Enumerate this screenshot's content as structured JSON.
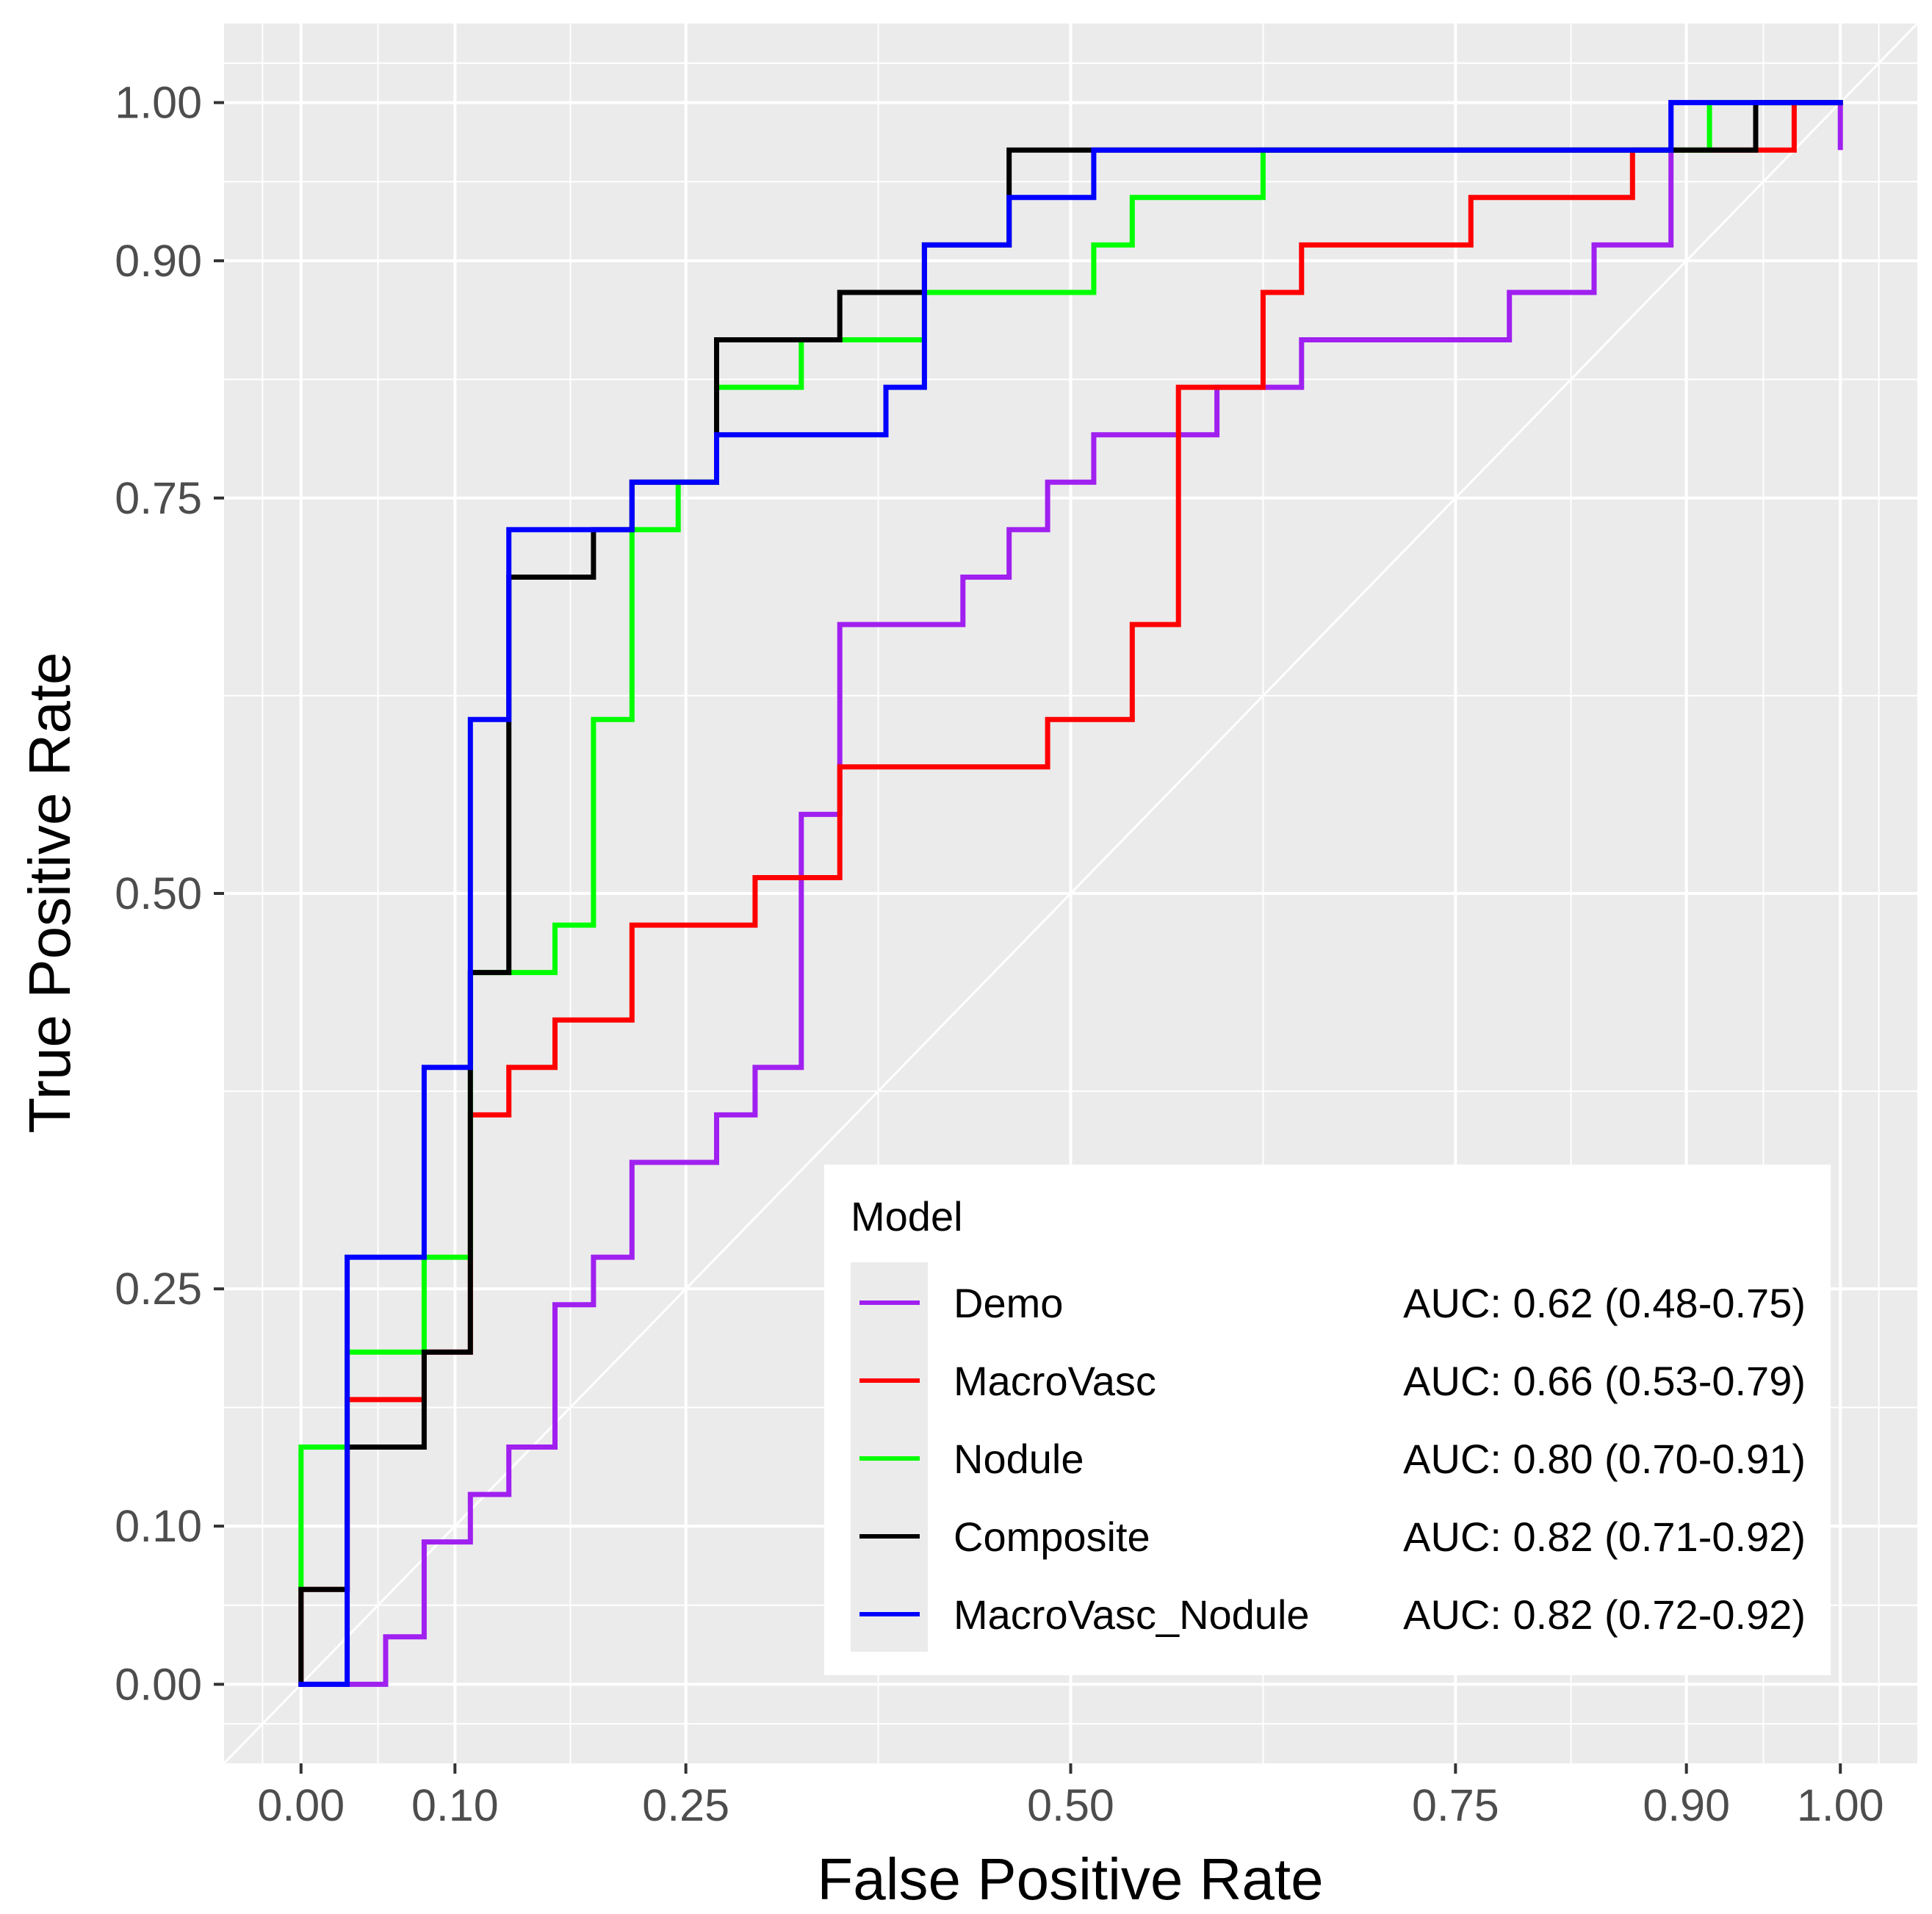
{
  "chart_data": {
    "type": "line",
    "title": "",
    "xlabel": "False Positive Rate",
    "ylabel": "True Positive Rate",
    "xlim": [
      -0.05,
      1.05
    ],
    "ylim": [
      -0.05,
      1.05
    ],
    "x_ticks": [
      "0.00",
      "0.10",
      "0.25",
      "0.50",
      "0.75",
      "0.90",
      "1.00"
    ],
    "y_ticks": [
      "0.00",
      "0.10",
      "0.25",
      "0.50",
      "0.75",
      "0.90",
      "1.00"
    ],
    "grid": true,
    "reference_line": "diagonal",
    "legend": {
      "title": "Model",
      "placement": "bottom-right"
    },
    "colors": {
      "panel": "#ebebeb",
      "grid": "#ffffff"
    },
    "series": [
      {
        "name": "Demo",
        "auc": "AUC: 0.62 (0.48-0.75)",
        "color": "#a020f0",
        "points": [
          [
            0.0,
            0.0
          ],
          [
            0.055,
            0.0
          ],
          [
            0.055,
            0.03
          ],
          [
            0.08,
            0.03
          ],
          [
            0.08,
            0.09
          ],
          [
            0.11,
            0.09
          ],
          [
            0.11,
            0.12
          ],
          [
            0.135,
            0.12
          ],
          [
            0.135,
            0.15
          ],
          [
            0.165,
            0.15
          ],
          [
            0.165,
            0.24
          ],
          [
            0.19,
            0.24
          ],
          [
            0.19,
            0.27
          ],
          [
            0.215,
            0.27
          ],
          [
            0.215,
            0.33
          ],
          [
            0.27,
            0.33
          ],
          [
            0.27,
            0.36
          ],
          [
            0.295,
            0.36
          ],
          [
            0.295,
            0.39
          ],
          [
            0.325,
            0.39
          ],
          [
            0.325,
            0.55
          ],
          [
            0.35,
            0.55
          ],
          [
            0.35,
            0.67
          ],
          [
            0.43,
            0.67
          ],
          [
            0.43,
            0.7
          ],
          [
            0.46,
            0.7
          ],
          [
            0.46,
            0.73
          ],
          [
            0.485,
            0.73
          ],
          [
            0.485,
            0.76
          ],
          [
            0.515,
            0.76
          ],
          [
            0.515,
            0.79
          ],
          [
            0.595,
            0.79
          ],
          [
            0.595,
            0.82
          ],
          [
            0.65,
            0.82
          ],
          [
            0.65,
            0.85
          ],
          [
            0.785,
            0.85
          ],
          [
            0.785,
            0.88
          ],
          [
            0.84,
            0.88
          ],
          [
            0.84,
            0.91
          ],
          [
            0.89,
            0.91
          ],
          [
            0.89,
            1.0
          ],
          [
            1.0,
            1.0
          ],
          [
            1.0,
            0.97
          ],
          [
            1.0,
            1.0
          ]
        ]
      },
      {
        "name": "MacroVasc",
        "auc": "AUC: 0.66 (0.53-0.79)",
        "color": "#ff0000",
        "points": [
          [
            0.0,
            0.0
          ],
          [
            0.0,
            0.06
          ],
          [
            0.03,
            0.06
          ],
          [
            0.03,
            0.18
          ],
          [
            0.08,
            0.18
          ],
          [
            0.08,
            0.21
          ],
          [
            0.11,
            0.21
          ],
          [
            0.11,
            0.36
          ],
          [
            0.135,
            0.36
          ],
          [
            0.135,
            0.39
          ],
          [
            0.165,
            0.39
          ],
          [
            0.165,
            0.42
          ],
          [
            0.215,
            0.42
          ],
          [
            0.215,
            0.48
          ],
          [
            0.295,
            0.48
          ],
          [
            0.295,
            0.51
          ],
          [
            0.35,
            0.51
          ],
          [
            0.35,
            0.58
          ],
          [
            0.485,
            0.58
          ],
          [
            0.485,
            0.61
          ],
          [
            0.54,
            0.61
          ],
          [
            0.54,
            0.67
          ],
          [
            0.57,
            0.67
          ],
          [
            0.57,
            0.82
          ],
          [
            0.625,
            0.82
          ],
          [
            0.625,
            0.88
          ],
          [
            0.65,
            0.88
          ],
          [
            0.65,
            0.91
          ],
          [
            0.76,
            0.91
          ],
          [
            0.76,
            0.94
          ],
          [
            0.865,
            0.94
          ],
          [
            0.865,
            0.97
          ],
          [
            0.97,
            0.97
          ],
          [
            0.97,
            1.0
          ],
          [
            1.0,
            1.0
          ]
        ]
      },
      {
        "name": "Nodule",
        "auc": "AUC: 0.80 (0.70-0.91)",
        "color": "#00ff00",
        "points": [
          [
            0.0,
            0.06
          ],
          [
            0.0,
            0.15
          ],
          [
            0.03,
            0.15
          ],
          [
            0.03,
            0.21
          ],
          [
            0.08,
            0.21
          ],
          [
            0.08,
            0.27
          ],
          [
            0.11,
            0.27
          ],
          [
            0.11,
            0.45
          ],
          [
            0.165,
            0.45
          ],
          [
            0.165,
            0.48
          ],
          [
            0.19,
            0.48
          ],
          [
            0.19,
            0.61
          ],
          [
            0.215,
            0.61
          ],
          [
            0.215,
            0.73
          ],
          [
            0.245,
            0.73
          ],
          [
            0.245,
            0.76
          ],
          [
            0.27,
            0.76
          ],
          [
            0.27,
            0.82
          ],
          [
            0.325,
            0.82
          ],
          [
            0.325,
            0.85
          ],
          [
            0.405,
            0.85
          ],
          [
            0.405,
            0.88
          ],
          [
            0.515,
            0.88
          ],
          [
            0.515,
            0.91
          ],
          [
            0.54,
            0.91
          ],
          [
            0.54,
            0.94
          ],
          [
            0.625,
            0.94
          ],
          [
            0.625,
            0.97
          ],
          [
            0.915,
            0.97
          ],
          [
            0.915,
            1.0
          ],
          [
            1.0,
            1.0
          ]
        ]
      },
      {
        "name": "Composite",
        "auc": "AUC: 0.82 (0.71-0.92)",
        "color": "#000000",
        "points": [
          [
            0.0,
            0.0
          ],
          [
            0.0,
            0.06
          ],
          [
            0.03,
            0.06
          ],
          [
            0.03,
            0.15
          ],
          [
            0.08,
            0.15
          ],
          [
            0.08,
            0.21
          ],
          [
            0.11,
            0.21
          ],
          [
            0.11,
            0.45
          ],
          [
            0.135,
            0.45
          ],
          [
            0.135,
            0.7
          ],
          [
            0.19,
            0.7
          ],
          [
            0.19,
            0.73
          ],
          [
            0.215,
            0.73
          ],
          [
            0.215,
            0.76
          ],
          [
            0.27,
            0.76
          ],
          [
            0.27,
            0.85
          ],
          [
            0.35,
            0.85
          ],
          [
            0.35,
            0.88
          ],
          [
            0.405,
            0.88
          ],
          [
            0.405,
            0.91
          ],
          [
            0.46,
            0.91
          ],
          [
            0.46,
            0.97
          ],
          [
            0.89,
            0.97
          ],
          [
            0.89,
            0.97
          ],
          [
            0.945,
            0.97
          ],
          [
            0.945,
            1.0
          ],
          [
            1.0,
            1.0
          ]
        ]
      },
      {
        "name": "MacroVasc_Nodule",
        "auc": "AUC: 0.82 (0.72-0.92)",
        "color": "#0000ff",
        "points": [
          [
            0.0,
            0.0
          ],
          [
            0.03,
            0.0
          ],
          [
            0.03,
            0.27
          ],
          [
            0.08,
            0.27
          ],
          [
            0.08,
            0.39
          ],
          [
            0.11,
            0.39
          ],
          [
            0.11,
            0.61
          ],
          [
            0.135,
            0.61
          ],
          [
            0.135,
            0.73
          ],
          [
            0.215,
            0.73
          ],
          [
            0.215,
            0.76
          ],
          [
            0.27,
            0.76
          ],
          [
            0.27,
            0.79
          ],
          [
            0.38,
            0.79
          ],
          [
            0.38,
            0.82
          ],
          [
            0.405,
            0.82
          ],
          [
            0.405,
            0.91
          ],
          [
            0.46,
            0.91
          ],
          [
            0.46,
            0.94
          ],
          [
            0.515,
            0.94
          ],
          [
            0.515,
            0.97
          ],
          [
            0.89,
            0.97
          ],
          [
            0.89,
            1.0
          ],
          [
            1.0,
            1.0
          ]
        ]
      }
    ]
  }
}
